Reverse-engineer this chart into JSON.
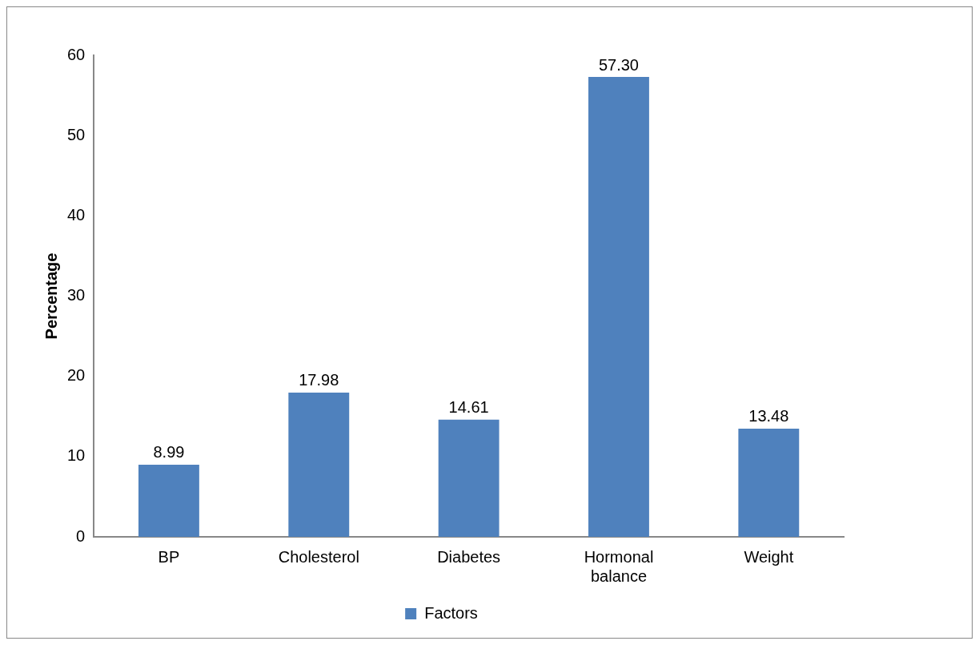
{
  "chart_data": {
    "type": "bar",
    "ylabel": "Percentage",
    "categories": [
      "BP",
      "Cholesterol",
      "Diabetes",
      "Hormonal balance",
      "Weight"
    ],
    "series": [
      {
        "name": "Factors",
        "color": "#4f81bd",
        "values": [
          8.99,
          17.98,
          14.61,
          57.3,
          13.48
        ],
        "value_labels": [
          "8.99",
          "17.98",
          "14.61",
          "57.30",
          "13.48"
        ]
      }
    ],
    "ylim": [
      0,
      60
    ],
    "yticks": [
      0,
      10,
      20,
      30,
      40,
      50,
      60
    ],
    "grid": false,
    "legend": "bottom"
  }
}
